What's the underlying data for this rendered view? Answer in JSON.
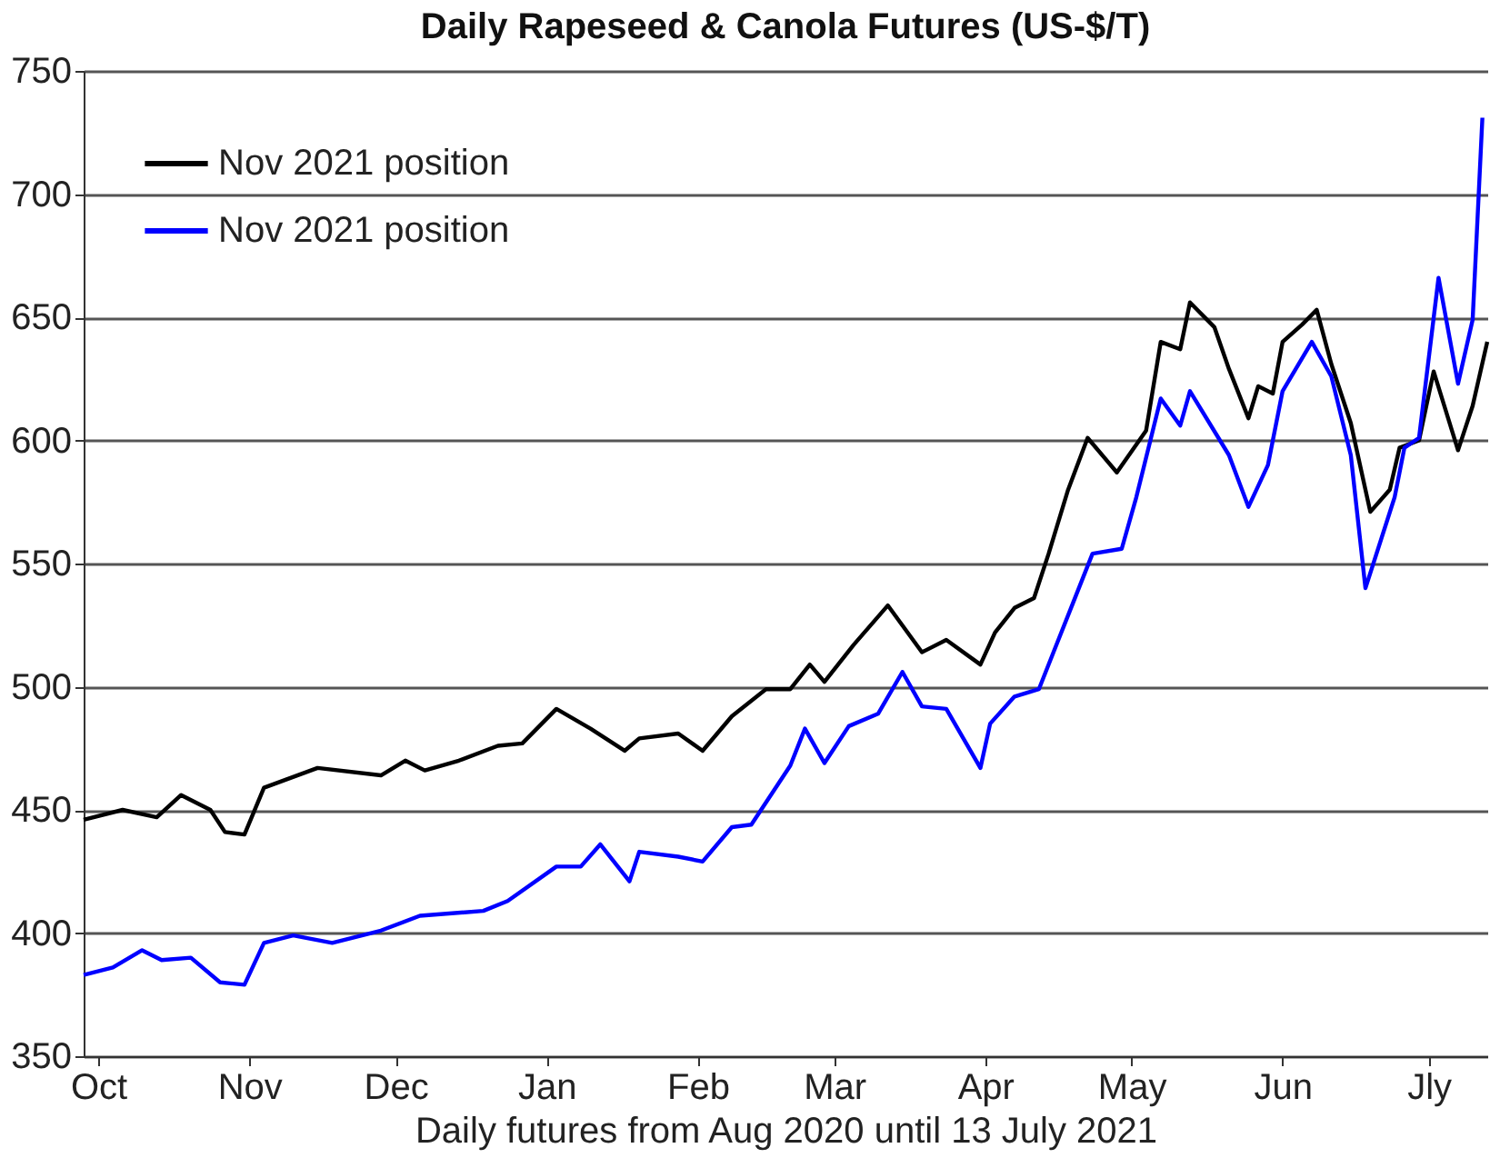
{
  "chart_data": {
    "type": "line",
    "title": "Daily Rapeseed & Canola Futures (US-$/T)",
    "xlabel": "Daily futures from Aug 2020 until 13 July 2021",
    "xlim": [
      "2020-09-28",
      "2021-07-13"
    ],
    "xticks": [
      {
        "value": "2020-10-01",
        "label": "Oct"
      },
      {
        "value": "2020-11-01",
        "label": "Nov"
      },
      {
        "value": "2020-12-01",
        "label": "Dec"
      },
      {
        "value": "2021-01-01",
        "label": "Jan"
      },
      {
        "value": "2021-02-01",
        "label": "Feb"
      },
      {
        "value": "2021-03-01",
        "label": "Mar"
      },
      {
        "value": "2021-04-01",
        "label": "Apr"
      },
      {
        "value": "2021-05-01",
        "label": "May"
      },
      {
        "value": "2021-06-01",
        "label": "Jun"
      },
      {
        "value": "2021-07-01",
        "label": "Jly"
      }
    ],
    "ylim": [
      350,
      750
    ],
    "yticks": [
      350,
      400,
      450,
      500,
      550,
      600,
      650,
      700,
      750
    ],
    "grid": "y",
    "legend": "top left",
    "line_style": "solid",
    "marker": "none",
    "series": [
      {
        "name": "Nov 2021 position",
        "color": "#000000",
        "x": [
          "2020-09-28",
          "2020-10-06",
          "2020-10-13",
          "2020-10-18",
          "2020-10-24",
          "2020-10-27",
          "2020-10-31",
          "2020-11-04",
          "2020-11-15",
          "2020-11-28",
          "2020-12-03",
          "2020-12-07",
          "2020-12-14",
          "2020-12-22",
          "2020-12-27",
          "2021-01-03",
          "2021-01-10",
          "2021-01-17",
          "2021-01-20",
          "2021-01-28",
          "2021-02-02",
          "2021-02-08",
          "2021-02-15",
          "2021-02-20",
          "2021-02-24",
          "2021-02-27",
          "2021-03-05",
          "2021-03-12",
          "2021-03-19",
          "2021-03-24",
          "2021-03-31",
          "2021-04-03",
          "2021-04-07",
          "2021-04-11",
          "2021-04-14",
          "2021-04-18",
          "2021-04-22",
          "2021-04-28",
          "2021-05-04",
          "2021-05-07",
          "2021-05-11",
          "2021-05-13",
          "2021-05-18",
          "2021-05-21",
          "2021-05-25",
          "2021-05-27",
          "2021-05-30",
          "2021-06-01",
          "2021-06-05",
          "2021-06-08",
          "2021-06-11",
          "2021-06-15",
          "2021-06-19",
          "2021-06-23",
          "2021-06-25",
          "2021-06-29",
          "2021-07-02",
          "2021-07-07",
          "2021-07-10",
          "2021-07-13"
        ],
        "values": [
          446,
          450,
          447,
          456,
          450,
          441,
          440,
          459,
          467,
          464,
          470,
          466,
          470,
          476,
          477,
          491,
          483,
          474,
          479,
          481,
          474,
          488,
          499,
          499,
          509,
          502,
          517,
          533,
          514,
          519,
          509,
          522,
          532,
          536,
          554,
          580,
          601,
          587,
          604,
          640,
          637,
          656,
          646,
          629,
          609,
          622,
          619,
          640,
          647,
          653,
          631,
          607,
          571,
          580,
          597,
          600,
          628,
          596,
          614,
          640
        ]
      },
      {
        "name": "Nov 2021 position",
        "color": "#0000ff",
        "x": [
          "2020-09-28",
          "2020-10-04",
          "2020-10-10",
          "2020-10-14",
          "2020-10-20",
          "2020-10-26",
          "2020-10-31",
          "2020-11-04",
          "2020-11-10",
          "2020-11-18",
          "2020-11-28",
          "2020-12-06",
          "2020-12-19",
          "2020-12-24",
          "2021-01-03",
          "2021-01-08",
          "2021-01-12",
          "2021-01-18",
          "2021-01-20",
          "2021-01-28",
          "2021-02-02",
          "2021-02-08",
          "2021-02-12",
          "2021-02-20",
          "2021-02-23",
          "2021-02-27",
          "2021-03-04",
          "2021-03-10",
          "2021-03-15",
          "2021-03-19",
          "2021-03-24",
          "2021-03-31",
          "2021-04-02",
          "2021-04-07",
          "2021-04-12",
          "2021-04-15",
          "2021-04-19",
          "2021-04-23",
          "2021-04-29",
          "2021-05-02",
          "2021-05-07",
          "2021-05-11",
          "2021-05-13",
          "2021-05-21",
          "2021-05-25",
          "2021-05-29",
          "2021-06-01",
          "2021-06-07",
          "2021-06-11",
          "2021-06-15",
          "2021-06-18",
          "2021-06-24",
          "2021-06-26",
          "2021-06-29",
          "2021-07-03",
          "2021-07-07",
          "2021-07-10",
          "2021-07-12"
        ],
        "values": [
          383,
          386,
          393,
          389,
          390,
          380,
          379,
          396,
          399,
          396,
          401,
          407,
          409,
          413,
          427,
          427,
          436,
          421,
          433,
          431,
          429,
          443,
          444,
          468,
          483,
          469,
          484,
          489,
          506,
          492,
          491,
          467,
          485,
          496,
          499,
          514,
          534,
          554,
          556,
          577,
          617,
          606,
          620,
          594,
          573,
          590,
          620,
          640,
          626,
          594,
          540,
          577,
          597,
          601,
          666,
          623,
          649,
          731
        ]
      }
    ]
  }
}
